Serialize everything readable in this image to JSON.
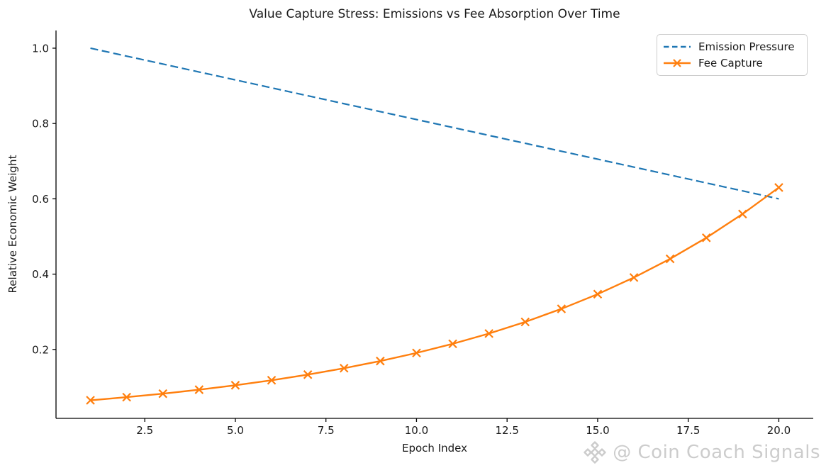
{
  "watermark": {
    "text": "@ Coin Coach Signals",
    "color": "#cccccc",
    "logo": "diamond-cluster-icon"
  },
  "chart_data": {
    "type": "line",
    "title": "Value Capture Stress: Emissions vs Fee Absorption Over Time",
    "xlabel": "Epoch Index",
    "ylabel": "Relative Economic Weight",
    "x": [
      1,
      2,
      3,
      4,
      5,
      6,
      7,
      8,
      9,
      10,
      11,
      12,
      13,
      14,
      15,
      16,
      17,
      18,
      19,
      20
    ],
    "series": [
      {
        "name": "Emission Pressure",
        "color": "#1f77b4",
        "line_style": "dashed",
        "marker": "none",
        "values": [
          1.0,
          0.9789,
          0.9579,
          0.9368,
          0.9158,
          0.8947,
          0.8737,
          0.8526,
          0.8316,
          0.8105,
          0.7895,
          0.7684,
          0.7474,
          0.7263,
          0.7053,
          0.6842,
          0.6632,
          0.6421,
          0.6211,
          0.6
        ]
      },
      {
        "name": "Fee Capture",
        "color": "#ff7f0e",
        "line_style": "solid",
        "marker": "x",
        "values": [
          0.065,
          0.0733,
          0.0826,
          0.0931,
          0.1049,
          0.1182,
          0.1332,
          0.1502,
          0.1692,
          0.1907,
          0.215,
          0.2423,
          0.2731,
          0.3078,
          0.3469,
          0.391,
          0.4406,
          0.4966,
          0.5597,
          0.63
        ]
      }
    ],
    "xticks": [
      "2.5",
      "5.0",
      "7.5",
      "10.0",
      "12.5",
      "15.0",
      "17.5",
      "20.0"
    ],
    "yticks": [
      "0.2",
      "0.4",
      "0.6",
      "0.8",
      "1.0"
    ],
    "xlim": [
      0.05,
      20.95
    ],
    "ylim": [
      0.017,
      1.047
    ],
    "grid": false,
    "legend_position": "upper right",
    "axis_color": "#000000",
    "text_color": "#1a1a1a"
  }
}
